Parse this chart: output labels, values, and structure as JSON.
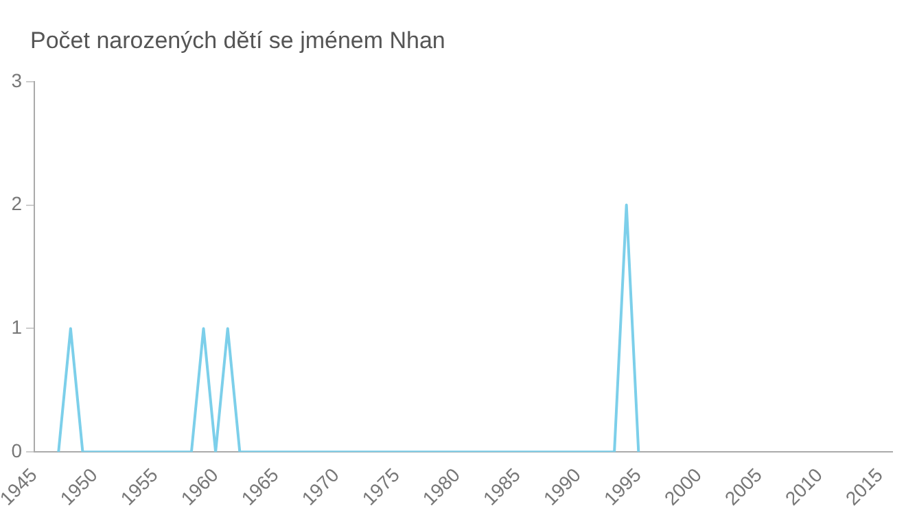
{
  "chart_data": {
    "type": "line",
    "title": "Počet narozených dětí se jménem Nhan",
    "x": [
      1947,
      1948,
      1949,
      1958,
      1959,
      1960,
      1961,
      1962,
      1993,
      1994,
      1995
    ],
    "series": [
      {
        "color": "#7ccfea",
        "values": [
          0,
          1,
          0,
          0,
          1,
          0,
          1,
          0,
          0,
          2,
          0
        ]
      }
    ],
    "xlim": [
      1945,
      2016
    ],
    "xticks": [
      1945,
      1950,
      1955,
      1960,
      1965,
      1970,
      1975,
      1980,
      1985,
      1990,
      1995,
      2000,
      2005,
      2010,
      2015
    ],
    "ylim": [
      0,
      3
    ],
    "yticks": [
      0,
      1,
      2,
      3
    ],
    "grid": false,
    "legend": false,
    "marker": "none",
    "line_style": "solid"
  }
}
